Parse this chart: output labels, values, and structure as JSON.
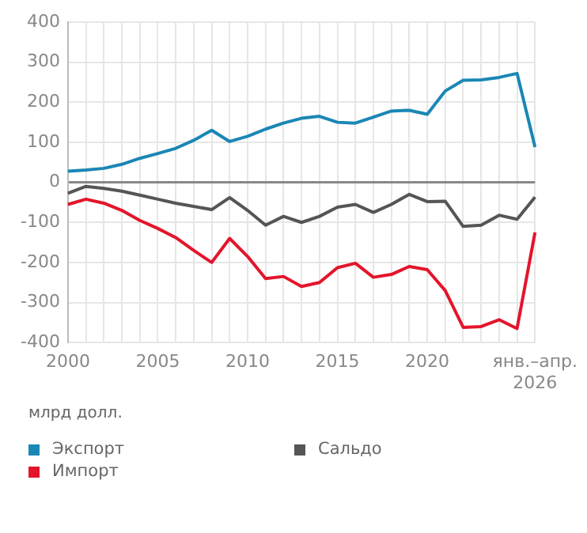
{
  "chart_data": {
    "type": "line",
    "ylabel": "млрд долл.",
    "categories": [
      "2000",
      null,
      null,
      null,
      null,
      "2005",
      null,
      null,
      null,
      null,
      "2010",
      null,
      null,
      null,
      null,
      "2015",
      null,
      null,
      null,
      null,
      "2020",
      null,
      null,
      null,
      null,
      null,
      "янв.–апр. 2026"
    ],
    "series": [
      {
        "name": "Экспорт",
        "color": "#1a87b5",
        "values": [
          28,
          31,
          35,
          45,
          60,
          72,
          85,
          105,
          130,
          102,
          115,
          133,
          148,
          160,
          165,
          150,
          148,
          163,
          178,
          180,
          170,
          228,
          255,
          256,
          262,
          272,
          88
        ]
      },
      {
        "name": "Импорт",
        "color": "#e3152b",
        "values": [
          -55,
          -42,
          -52,
          -70,
          -95,
          -115,
          -138,
          -170,
          -200,
          -140,
          -185,
          -240,
          -235,
          -260,
          -250,
          -213,
          -202,
          -237,
          -230,
          -210,
          -218,
          -270,
          -362,
          -360,
          -343,
          -365,
          -125
        ]
      },
      {
        "name": "Сальдо",
        "color": "#555555",
        "values": [
          -27,
          -10,
          -15,
          -22,
          -32,
          -42,
          -52,
          -60,
          -68,
          -38,
          -70,
          -107,
          -85,
          -100,
          -85,
          -62,
          -55,
          -75,
          -55,
          -30,
          -48,
          -47,
          -110,
          -107,
          -82,
          -92,
          -37
        ]
      }
    ],
    "ylim": [
      -400,
      400
    ],
    "yticks": [
      -400,
      -300,
      -200,
      -100,
      0,
      100,
      200,
      300,
      400
    ],
    "grid": true,
    "legend": "bottom",
    "marker": "none",
    "line_style": "solid"
  }
}
